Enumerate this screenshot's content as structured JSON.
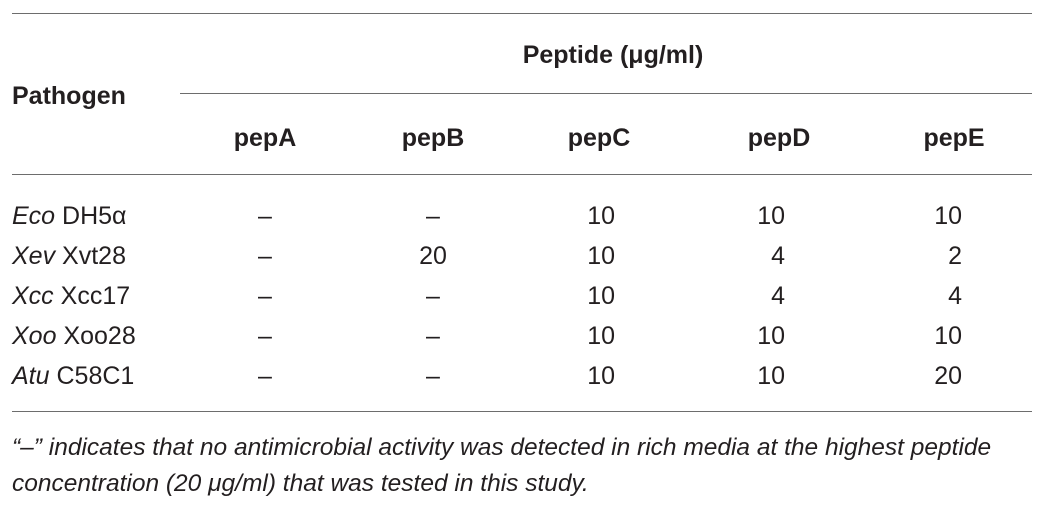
{
  "table": {
    "header": {
      "row_label": "Pathogen",
      "group_label": "Peptide (μg/ml)",
      "columns": [
        "pepA",
        "pepB",
        "pepC",
        "pepD",
        "pepE"
      ]
    },
    "rows": [
      {
        "abbr": "Eco",
        "strain": "DH5α",
        "values": [
          "–",
          "–",
          "10",
          "10",
          "10"
        ]
      },
      {
        "abbr": "Xev",
        "strain": "Xvt28",
        "values": [
          "–",
          "20",
          "10",
          "4",
          "2"
        ]
      },
      {
        "abbr": "Xcc",
        "strain": "Xcc17",
        "values": [
          "–",
          "–",
          "10",
          "4",
          "4"
        ]
      },
      {
        "abbr": "Xoo",
        "strain": "Xoo28",
        "values": [
          "–",
          "–",
          "10",
          "10",
          "10"
        ]
      },
      {
        "abbr": "Atu",
        "strain": "C58C1",
        "values": [
          "–",
          "–",
          "10",
          "10",
          "20"
        ]
      }
    ],
    "footnote": "“–” indicates that no antimicrobial activity was detected in rich media at the highest peptide concentration (20 μg/ml) that was tested in this study."
  }
}
